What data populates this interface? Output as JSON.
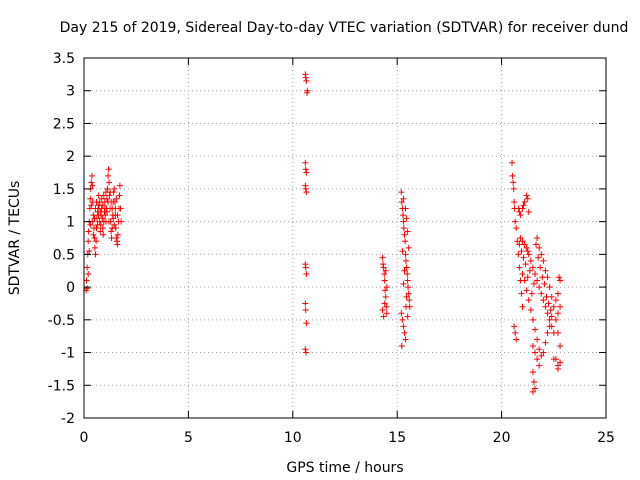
{
  "chart_data": {
    "type": "scatter",
    "title": "Day 215 of 2019, Sidereal Day-to-day VTEC variation (SDTVAR) for receiver dund",
    "xlabel": "GPS time / hours",
    "ylabel": "SDTVAR / TECUs",
    "xlim": [
      0,
      25
    ],
    "ylim": [
      -2,
      3.5
    ],
    "xticks": [
      0,
      5,
      10,
      15,
      20,
      25
    ],
    "xtick_labels": [
      "0",
      "5",
      "10",
      "15",
      "20",
      "25"
    ],
    "yticks": [
      -2,
      -1.5,
      -1,
      -0.5,
      0,
      0.5,
      1,
      1.5,
      2,
      2.5,
      3,
      3.5
    ],
    "ytick_labels": [
      "-2",
      "-1.5",
      "-1",
      "-0.5",
      "0",
      "0.5",
      "1",
      "1.5",
      "2",
      "2.5",
      "3",
      "3.5"
    ],
    "grid": true,
    "marker": "+",
    "series": [
      {
        "name": "SDTVAR",
        "color": "#ff0000",
        "points": [
          [
            0.1,
            -0.05
          ],
          [
            0.12,
            0.1
          ],
          [
            0.15,
            0.3
          ],
          [
            0.18,
            0.5
          ],
          [
            0.2,
            0.7
          ],
          [
            0.22,
            0.85
          ],
          [
            0.25,
            1.0
          ],
          [
            0.28,
            1.2
          ],
          [
            0.3,
            1.35
          ],
          [
            0.32,
            1.5
          ],
          [
            0.35,
            1.6
          ],
          [
            0.38,
            1.7
          ],
          [
            0.4,
            1.55
          ],
          [
            0.42,
            1.3
          ],
          [
            0.45,
            1.1
          ],
          [
            0.48,
            0.9
          ],
          [
            0.5,
            0.75
          ],
          [
            0.52,
            0.6
          ],
          [
            0.55,
            0.5
          ],
          [
            0.58,
            0.7
          ],
          [
            0.6,
            0.9
          ],
          [
            0.62,
            1.05
          ],
          [
            0.65,
            1.15
          ],
          [
            0.68,
            1.25
          ],
          [
            0.7,
            1.4
          ],
          [
            0.72,
            1.2
          ],
          [
            0.75,
            1.0
          ],
          [
            0.78,
            0.85
          ],
          [
            0.8,
            0.95
          ],
          [
            0.82,
            1.1
          ],
          [
            0.85,
            1.2
          ],
          [
            0.88,
            1.05
          ],
          [
            0.9,
            0.9
          ],
          [
            0.92,
            0.8
          ],
          [
            0.95,
            1.0
          ],
          [
            0.98,
            1.15
          ],
          [
            1.0,
            1.3
          ],
          [
            1.02,
            1.1
          ],
          [
            1.05,
            1.0
          ],
          [
            1.08,
            1.2
          ],
          [
            1.1,
            1.35
          ],
          [
            1.12,
            1.5
          ],
          [
            1.15,
            1.7
          ],
          [
            1.18,
            1.8
          ],
          [
            1.2,
            1.6
          ],
          [
            1.22,
            1.4
          ],
          [
            1.25,
            1.2
          ],
          [
            1.28,
            1.0
          ],
          [
            1.3,
            0.85
          ],
          [
            1.32,
            0.75
          ],
          [
            1.35,
            0.9
          ],
          [
            1.38,
            1.1
          ],
          [
            1.4,
            1.3
          ],
          [
            1.42,
            1.45
          ],
          [
            1.45,
            1.5
          ],
          [
            1.48,
            1.3
          ],
          [
            1.5,
            1.1
          ],
          [
            1.52,
            0.9
          ],
          [
            1.55,
            0.75
          ],
          [
            1.58,
            0.7
          ],
          [
            1.6,
            0.65
          ],
          [
            1.62,
            0.8
          ],
          [
            1.65,
            1.0
          ],
          [
            1.68,
            1.2
          ],
          [
            1.7,
            1.4
          ],
          [
            1.72,
            1.55
          ],
          [
            1.75,
            1.2
          ],
          [
            1.78,
            1.0
          ],
          [
            0.15,
            -0.02
          ],
          [
            0.2,
            0.2
          ],
          [
            0.25,
            0.55
          ],
          [
            0.3,
            0.95
          ],
          [
            0.35,
            1.25
          ],
          [
            0.4,
            1.0
          ],
          [
            0.45,
            0.8
          ],
          [
            0.5,
            1.05
          ],
          [
            0.55,
            1.2
          ],
          [
            0.6,
            1.3
          ],
          [
            0.65,
            0.95
          ],
          [
            0.7,
            1.1
          ],
          [
            0.75,
            1.3
          ],
          [
            0.8,
            1.15
          ],
          [
            0.85,
            1.35
          ],
          [
            0.9,
            1.25
          ],
          [
            0.95,
            1.4
          ],
          [
            1.0,
            1.2
          ],
          [
            1.05,
            1.45
          ],
          [
            1.1,
            1.15
          ],
          [
            1.15,
            1.3
          ],
          [
            1.2,
            1.0
          ],
          [
            1.25,
            1.45
          ],
          [
            1.3,
            1.3
          ],
          [
            1.35,
            1.2
          ],
          [
            1.4,
            1.05
          ],
          [
            1.45,
            0.95
          ],
          [
            1.5,
            1.2
          ],
          [
            1.55,
            1.35
          ],
          [
            1.6,
            1.1
          ],
          [
            10.6,
            3.25
          ],
          [
            10.62,
            3.2
          ],
          [
            10.65,
            3.15
          ],
          [
            10.7,
            3.0
          ],
          [
            10.68,
            2.97
          ],
          [
            10.6,
            1.9
          ],
          [
            10.62,
            1.8
          ],
          [
            10.65,
            1.75
          ],
          [
            10.6,
            1.55
          ],
          [
            10.62,
            1.5
          ],
          [
            10.65,
            1.45
          ],
          [
            10.6,
            0.35
          ],
          [
            10.62,
            0.3
          ],
          [
            10.65,
            0.2
          ],
          [
            10.6,
            -0.25
          ],
          [
            10.62,
            -0.35
          ],
          [
            10.65,
            -0.55
          ],
          [
            10.6,
            -0.95
          ],
          [
            10.63,
            -1.0
          ],
          [
            14.3,
            0.45
          ],
          [
            14.32,
            0.35
          ],
          [
            14.35,
            0.3
          ],
          [
            14.38,
            0.2
          ],
          [
            14.4,
            0.1
          ],
          [
            14.42,
            -0.05
          ],
          [
            14.45,
            -0.15
          ],
          [
            14.48,
            -0.3
          ],
          [
            14.5,
            -0.4
          ],
          [
            14.35,
            -0.45
          ],
          [
            14.3,
            -0.35
          ],
          [
            14.45,
            0.25
          ],
          [
            14.5,
            0.0
          ],
          [
            14.4,
            -0.25
          ],
          [
            15.2,
            1.45
          ],
          [
            15.22,
            1.3
          ],
          [
            15.25,
            1.2
          ],
          [
            15.28,
            1.1
          ],
          [
            15.3,
            1.0
          ],
          [
            15.32,
            0.9
          ],
          [
            15.35,
            0.8
          ],
          [
            15.38,
            0.7
          ],
          [
            15.4,
            0.5
          ],
          [
            15.42,
            0.4
          ],
          [
            15.45,
            0.3
          ],
          [
            15.48,
            0.2
          ],
          [
            15.5,
            0.1
          ],
          [
            15.52,
            0.0
          ],
          [
            15.55,
            -0.1
          ],
          [
            15.58,
            -0.2
          ],
          [
            15.6,
            -0.3
          ],
          [
            15.2,
            -0.4
          ],
          [
            15.25,
            -0.5
          ],
          [
            15.3,
            -0.6
          ],
          [
            15.35,
            -0.7
          ],
          [
            15.4,
            -0.8
          ],
          [
            15.22,
            -0.9
          ],
          [
            15.3,
            1.35
          ],
          [
            15.4,
            1.2
          ],
          [
            15.45,
            1.05
          ],
          [
            15.5,
            0.85
          ],
          [
            15.55,
            0.6
          ],
          [
            15.25,
            0.55
          ],
          [
            15.35,
            0.25
          ],
          [
            15.45,
            -0.15
          ],
          [
            15.5,
            -0.45
          ],
          [
            15.3,
            0.05
          ],
          [
            15.42,
            -0.3
          ],
          [
            20.5,
            1.9
          ],
          [
            20.52,
            1.7
          ],
          [
            20.55,
            1.6
          ],
          [
            20.58,
            1.5
          ],
          [
            20.6,
            1.3
          ],
          [
            20.62,
            1.2
          ],
          [
            20.65,
            1.0
          ],
          [
            20.7,
            0.9
          ],
          [
            20.75,
            0.7
          ],
          [
            20.8,
            0.5
          ],
          [
            20.85,
            0.3
          ],
          [
            20.9,
            0.1
          ],
          [
            20.95,
            -0.1
          ],
          [
            21.0,
            -0.3
          ],
          [
            20.6,
            -0.6
          ],
          [
            20.65,
            -0.7
          ],
          [
            20.7,
            -0.8
          ],
          [
            20.8,
            1.2
          ],
          [
            20.85,
            1.15
          ],
          [
            20.9,
            1.1
          ],
          [
            21.0,
            1.2
          ],
          [
            21.05,
            1.25
          ],
          [
            21.1,
            1.3
          ],
          [
            21.2,
            1.4
          ],
          [
            21.25,
            1.35
          ],
          [
            21.3,
            1.15
          ],
          [
            20.9,
            0.75
          ],
          [
            21.0,
            0.7
          ],
          [
            21.1,
            0.65
          ],
          [
            21.2,
            0.6
          ],
          [
            21.25,
            0.55
          ],
          [
            21.3,
            0.5
          ],
          [
            21.4,
            0.4
          ],
          [
            21.5,
            0.3
          ],
          [
            21.6,
            0.2
          ],
          [
            21.7,
            0.1
          ],
          [
            21.8,
            0.0
          ],
          [
            21.9,
            -0.1
          ],
          [
            22.0,
            -0.2
          ],
          [
            22.1,
            -0.3
          ],
          [
            22.2,
            -0.4
          ],
          [
            22.3,
            -0.5
          ],
          [
            22.4,
            -0.6
          ],
          [
            22.5,
            -0.7
          ],
          [
            21.5,
            -0.9
          ],
          [
            21.6,
            -1.0
          ],
          [
            21.7,
            -1.1
          ],
          [
            21.8,
            -1.2
          ],
          [
            21.5,
            -1.3
          ],
          [
            21.55,
            -1.45
          ],
          [
            21.6,
            -1.55
          ],
          [
            21.5,
            -1.6
          ],
          [
            21.7,
            0.75
          ],
          [
            21.8,
            0.6
          ],
          [
            21.9,
            0.5
          ],
          [
            22.0,
            0.4
          ],
          [
            22.1,
            0.25
          ],
          [
            22.2,
            0.15
          ],
          [
            22.3,
            0.0
          ],
          [
            22.4,
            -0.15
          ],
          [
            22.5,
            -0.3
          ],
          [
            22.6,
            -0.2
          ],
          [
            22.7,
            -0.1
          ],
          [
            22.8,
            0.1
          ],
          [
            22.6,
            -0.5
          ],
          [
            22.7,
            -0.7
          ],
          [
            22.8,
            -0.9
          ],
          [
            22.6,
            -1.1
          ],
          [
            22.7,
            -1.2
          ],
          [
            22.8,
            -1.15
          ],
          [
            22.7,
            -1.25
          ],
          [
            22.5,
            -1.1
          ],
          [
            22.75,
            0.15
          ],
          [
            22.8,
            -0.3
          ],
          [
            22.7,
            -0.4
          ],
          [
            21.0,
            0.2
          ],
          [
            21.1,
            0.1
          ],
          [
            21.2,
            -0.05
          ],
          [
            21.3,
            -0.2
          ],
          [
            21.4,
            -0.35
          ],
          [
            21.5,
            -0.5
          ],
          [
            21.6,
            -0.65
          ],
          [
            21.7,
            -0.8
          ],
          [
            21.8,
            -0.95
          ],
          [
            21.9,
            -1.05
          ],
          [
            22.0,
            -1.0
          ],
          [
            22.1,
            -0.85
          ],
          [
            22.2,
            -0.7
          ],
          [
            22.3,
            -0.6
          ],
          [
            22.4,
            -0.45
          ],
          [
            21.65,
            0.65
          ],
          [
            21.75,
            0.45
          ],
          [
            21.85,
            0.3
          ],
          [
            21.95,
            0.15
          ],
          [
            22.05,
            0.05
          ],
          [
            22.15,
            -0.15
          ],
          [
            22.25,
            -0.25
          ],
          [
            22.35,
            -0.35
          ],
          [
            21.45,
            -0.1
          ],
          [
            21.55,
            0.05
          ],
          [
            21.35,
            0.25
          ],
          [
            21.25,
            0.15
          ],
          [
            21.15,
            0.35
          ],
          [
            21.05,
            0.45
          ],
          [
            20.95,
            0.55
          ],
          [
            20.85,
            0.65
          ]
        ]
      }
    ]
  }
}
